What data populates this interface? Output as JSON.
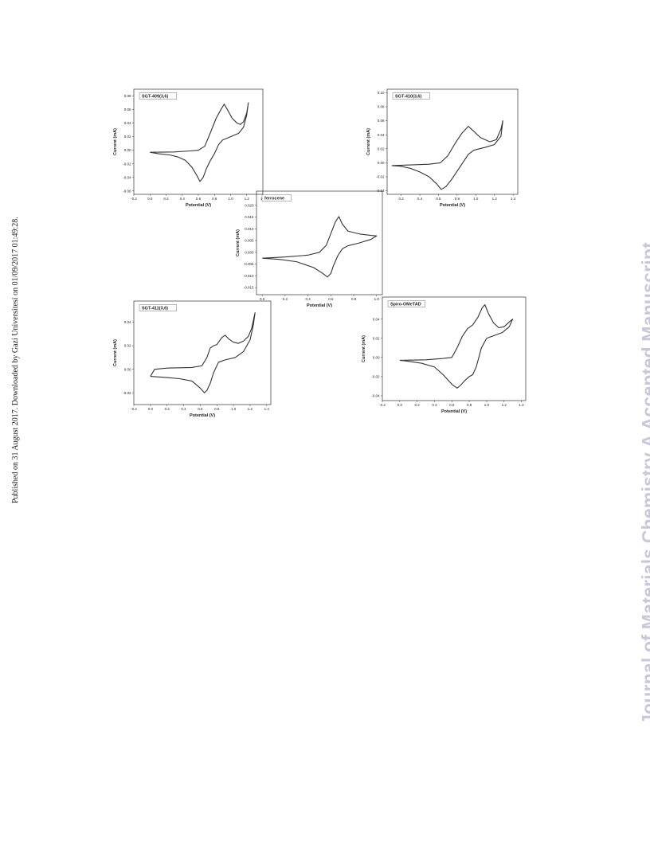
{
  "side_note": "Published on 31 August 2017. Downloaded by Gazi Universitesi on 01/09/2017 01:49:28.",
  "watermark": "Journal of Materials Chemistry A Accepted Manuscript",
  "chart_data": [
    {
      "type": "line",
      "legend": "SGT-409(3,6)",
      "xlabel": "Potential (V)",
      "ylabel": "Current (mA)",
      "xlim": [
        -0.2,
        1.4
      ],
      "ylim": [
        -0.065,
        0.09
      ],
      "xticks": [
        "-0.2",
        "0.0",
        "0.2",
        "0.4",
        "0.6",
        "0.8",
        "1.0",
        "1.2",
        "1.4"
      ],
      "yticks": [
        "-0.06",
        "-0.04",
        "-0.02",
        "0.00",
        "0.02",
        "0.04",
        "0.06",
        "0.08"
      ],
      "series": [
        {
          "points": [
            [
              0.0,
              -0.003
            ],
            [
              0.3,
              -0.0025
            ],
            [
              0.5,
              -0.001
            ],
            [
              0.6,
              0.0
            ],
            [
              0.68,
              0.006
            ],
            [
              0.75,
              0.026
            ],
            [
              0.82,
              0.047
            ],
            [
              0.88,
              0.06
            ],
            [
              0.92,
              0.068
            ],
            [
              0.96,
              0.06
            ],
            [
              1.02,
              0.047
            ],
            [
              1.08,
              0.04
            ],
            [
              1.12,
              0.038
            ],
            [
              1.16,
              0.042
            ],
            [
              1.2,
              0.055
            ],
            [
              1.22,
              0.07
            ],
            [
              1.2,
              0.052
            ],
            [
              1.16,
              0.034
            ],
            [
              1.1,
              0.025
            ],
            [
              1.0,
              0.02
            ],
            [
              0.9,
              0.015
            ],
            [
              0.85,
              0.008
            ],
            [
              0.8,
              -0.005
            ],
            [
              0.75,
              -0.015
            ],
            [
              0.7,
              -0.027
            ],
            [
              0.66,
              -0.04
            ],
            [
              0.62,
              -0.046
            ],
            [
              0.58,
              -0.037
            ],
            [
              0.52,
              -0.025
            ],
            [
              0.44,
              -0.015
            ],
            [
              0.35,
              -0.01
            ],
            [
              0.25,
              -0.007
            ],
            [
              0.1,
              -0.005
            ],
            [
              0.0,
              -0.003
            ]
          ]
        }
      ]
    },
    {
      "type": "line",
      "legend": "SGT-410(3,6)",
      "xlabel": "Potential (V)",
      "ylabel": "Current (mA)",
      "xlim": [
        0.05,
        1.45
      ],
      "ylim": [
        -0.045,
        0.105
      ],
      "xticks": [
        "0.2",
        "0.4",
        "0.6",
        "0.8",
        "1.0",
        "1.2",
        "1.4"
      ],
      "yticks": [
        "-0.04",
        "-0.02",
        "0.00",
        "0.02",
        "0.04",
        "0.06",
        "0.08",
        "0.10"
      ],
      "series": [
        {
          "points": [
            [
              0.1,
              -0.004
            ],
            [
              0.3,
              -0.003
            ],
            [
              0.5,
              -0.002
            ],
            [
              0.62,
              0.0
            ],
            [
              0.7,
              0.01
            ],
            [
              0.78,
              0.028
            ],
            [
              0.85,
              0.042
            ],
            [
              0.92,
              0.052
            ],
            [
              0.97,
              0.046
            ],
            [
              1.05,
              0.036
            ],
            [
              1.15,
              0.03
            ],
            [
              1.22,
              0.033
            ],
            [
              1.27,
              0.048
            ],
            [
              1.29,
              0.06
            ],
            [
              1.27,
              0.038
            ],
            [
              1.2,
              0.026
            ],
            [
              1.1,
              0.022
            ],
            [
              0.98,
              0.018
            ],
            [
              0.92,
              0.012
            ],
            [
              0.86,
              0.0
            ],
            [
              0.8,
              -0.012
            ],
            [
              0.74,
              -0.024
            ],
            [
              0.68,
              -0.034
            ],
            [
              0.63,
              -0.038
            ],
            [
              0.58,
              -0.03
            ],
            [
              0.5,
              -0.02
            ],
            [
              0.4,
              -0.013
            ],
            [
              0.3,
              -0.008
            ],
            [
              0.2,
              -0.005
            ],
            [
              0.1,
              -0.004
            ]
          ]
        }
      ]
    },
    {
      "type": "line",
      "legend": "ferrocene",
      "xlabel": "Potential (V)",
      "ylabel": "Current (mA)",
      "xlim": [
        -0.05,
        1.05
      ],
      "ylim": [
        -0.018,
        0.026
      ],
      "xticks": [
        "0.0",
        "0.2",
        "0.4",
        "0.6",
        "0.8",
        "1.0"
      ],
      "yticks": [
        "-0.015",
        "-0.010",
        "-0.005",
        "0.000",
        "0.005",
        "0.010",
        "0.015",
        "0.020"
      ],
      "series": [
        {
          "points": [
            [
              0.0,
              -0.0025
            ],
            [
              0.2,
              -0.002
            ],
            [
              0.4,
              -0.0012
            ],
            [
              0.5,
              0.0
            ],
            [
              0.56,
              0.003
            ],
            [
              0.6,
              0.008
            ],
            [
              0.64,
              0.013
            ],
            [
              0.67,
              0.0152
            ],
            [
              0.7,
              0.012
            ],
            [
              0.75,
              0.009
            ],
            [
              0.85,
              0.0078
            ],
            [
              0.95,
              0.0072
            ],
            [
              1.0,
              0.007
            ],
            [
              0.95,
              0.0055
            ],
            [
              0.85,
              0.004
            ],
            [
              0.75,
              0.0028
            ],
            [
              0.7,
              0.0015
            ],
            [
              0.66,
              -0.0015
            ],
            [
              0.62,
              -0.006
            ],
            [
              0.6,
              -0.009
            ],
            [
              0.57,
              -0.0105
            ],
            [
              0.53,
              -0.009
            ],
            [
              0.45,
              -0.0065
            ],
            [
              0.3,
              -0.004
            ],
            [
              0.15,
              -0.003
            ],
            [
              0.0,
              -0.0025
            ]
          ]
        }
      ]
    },
    {
      "type": "line",
      "legend": "SGT-411(3,6)",
      "xlabel": "Potential (V)",
      "ylabel": "Current (mA)",
      "xlim": [
        -0.2,
        1.45
      ],
      "ylim": [
        -0.03,
        0.058
      ],
      "xticks": [
        "-0.2",
        "0.0",
        "0.2",
        "0.4",
        "0.6",
        "0.8",
        "1.0",
        "1.2",
        "1.4"
      ],
      "yticks": [
        "-0.02",
        "0.00",
        "0.02",
        "0.04"
      ],
      "series": [
        {
          "points": [
            [
              0.0,
              -0.006
            ],
            [
              0.05,
              0.0
            ],
            [
              0.2,
              0.001
            ],
            [
              0.5,
              0.0015
            ],
            [
              0.62,
              0.003
            ],
            [
              0.68,
              0.01
            ],
            [
              0.72,
              0.018
            ],
            [
              0.76,
              0.02
            ],
            [
              0.8,
              0.021
            ],
            [
              0.86,
              0.027
            ],
            [
              0.9,
              0.029
            ],
            [
              0.94,
              0.026
            ],
            [
              1.0,
              0.023
            ],
            [
              1.06,
              0.022
            ],
            [
              1.12,
              0.024
            ],
            [
              1.18,
              0.028
            ],
            [
              1.22,
              0.035
            ],
            [
              1.25,
              0.045
            ],
            [
              1.26,
              0.048
            ],
            [
              1.24,
              0.038
            ],
            [
              1.2,
              0.025
            ],
            [
              1.12,
              0.015
            ],
            [
              1.02,
              0.01
            ],
            [
              0.9,
              0.008
            ],
            [
              0.82,
              0.006
            ],
            [
              0.76,
              -0.003
            ],
            [
              0.72,
              -0.012
            ],
            [
              0.68,
              -0.018
            ],
            [
              0.65,
              -0.02
            ],
            [
              0.6,
              -0.016
            ],
            [
              0.5,
              -0.01
            ],
            [
              0.35,
              -0.008
            ],
            [
              0.2,
              -0.007
            ],
            [
              0.0,
              -0.006
            ]
          ]
        }
      ]
    },
    {
      "type": "line",
      "legend": "Spiro-OMeTAD",
      "xlabel": "Potential (V)",
      "ylabel": "Current (mA)",
      "xlim": [
        -0.2,
        1.45
      ],
      "ylim": [
        -0.045,
        0.063
      ],
      "xticks": [
        "-0.2",
        "0.0",
        "0.2",
        "0.4",
        "0.6",
        "0.8",
        "1.0",
        "1.2",
        "1.4"
      ],
      "yticks": [
        "-0.04",
        "-0.02",
        "0.00",
        "0.02",
        "0.04"
      ],
      "series": [
        {
          "points": [
            [
              0.0,
              -0.003
            ],
            [
              0.3,
              -0.0025
            ],
            [
              0.5,
              -0.001
            ],
            [
              0.6,
              0.0
            ],
            [
              0.66,
              0.01
            ],
            [
              0.72,
              0.022
            ],
            [
              0.78,
              0.03
            ],
            [
              0.84,
              0.034
            ],
            [
              0.9,
              0.042
            ],
            [
              0.95,
              0.052
            ],
            [
              0.98,
              0.055
            ],
            [
              1.02,
              0.046
            ],
            [
              1.08,
              0.036
            ],
            [
              1.14,
              0.031
            ],
            [
              1.2,
              0.032
            ],
            [
              1.26,
              0.037
            ],
            [
              1.3,
              0.04
            ],
            [
              1.26,
              0.032
            ],
            [
              1.18,
              0.026
            ],
            [
              1.06,
              0.022
            ],
            [
              1.0,
              0.02
            ],
            [
              0.94,
              0.01
            ],
            [
              0.88,
              -0.01
            ],
            [
              0.84,
              -0.018
            ],
            [
              0.8,
              -0.02
            ],
            [
              0.75,
              -0.024
            ],
            [
              0.7,
              -0.029
            ],
            [
              0.66,
              -0.032
            ],
            [
              0.6,
              -0.028
            ],
            [
              0.5,
              -0.018
            ],
            [
              0.4,
              -0.01
            ],
            [
              0.25,
              -0.006
            ],
            [
              0.1,
              -0.004
            ],
            [
              0.0,
              -0.003
            ]
          ]
        }
      ]
    }
  ]
}
